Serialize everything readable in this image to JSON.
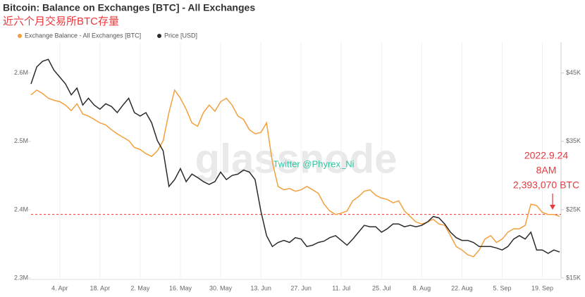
{
  "chart_data": {
    "type": "line",
    "title": "Bitcoin: Balance on Exchanges [BTC] - All Exchanges",
    "subtitle": "近六个月交易所BTC存量",
    "watermark": "glassnode",
    "credit": "Twitter @Phyrex_Ni",
    "annotation": {
      "lines": [
        "2022.9.24",
        "8AM",
        "2,393,070 BTC"
      ],
      "value": 2393070,
      "color": "#e8383d"
    },
    "categories": [
      null,
      null,
      null,
      null,
      null,
      "4. Apr",
      null,
      null,
      null,
      null,
      null,
      null,
      "18. Apr",
      null,
      null,
      null,
      null,
      null,
      null,
      "2. May",
      null,
      null,
      null,
      null,
      null,
      null,
      "16. May",
      null,
      null,
      null,
      null,
      null,
      null,
      "30. May",
      null,
      null,
      null,
      null,
      null,
      null,
      "13. Jun",
      null,
      null,
      null,
      null,
      null,
      null,
      "27. Jun",
      null,
      null,
      null,
      null,
      null,
      null,
      "11. Jul",
      null,
      null,
      null,
      null,
      null,
      null,
      "25. Jul",
      null,
      null,
      null,
      null,
      null,
      null,
      "8. Aug",
      null,
      null,
      null,
      null,
      null,
      null,
      "22. Aug",
      null,
      null,
      null,
      null,
      null,
      null,
      "5. Sep",
      null,
      null,
      null,
      null,
      null,
      null,
      "19. Sep",
      null,
      null,
      null
    ],
    "series": [
      {
        "name": "Exchange Balance - All Exchanges [BTC]",
        "color": "#f2a03d",
        "values": [
          2568000,
          2575000,
          2570000,
          2563000,
          2560000,
          2558000,
          2553000,
          2545000,
          2555000,
          2540000,
          2537000,
          2532000,
          2527000,
          2524000,
          2517000,
          2511000,
          2506000,
          2501000,
          2491000,
          2488000,
          2482000,
          2478000,
          2486000,
          2501000,
          2542000,
          2575000,
          2563000,
          2547000,
          2527000,
          2522000,
          2542000,
          2553000,
          2544000,
          2558000,
          2563000,
          2553000,
          2537000,
          2532000,
          2517000,
          2511000,
          2513000,
          2527000,
          2470000,
          2434000,
          2429000,
          2431000,
          2427000,
          2429000,
          2434000,
          2429000,
          2424000,
          2408000,
          2398000,
          2393000,
          2395000,
          2398000,
          2413000,
          2419000,
          2427000,
          2429000,
          2421000,
          2417000,
          2415000,
          2410000,
          2413000,
          2398000,
          2390000,
          2382000,
          2379000,
          2382000,
          2386000,
          2379000,
          2377000,
          2362000,
          2346000,
          2341000,
          2334000,
          2331000,
          2341000,
          2357000,
          2362000,
          2352000,
          2357000,
          2367000,
          2372000,
          2372000,
          2377000,
          2408000,
          2406000,
          2396000,
          2393000,
          2393000,
          2390000
        ]
      },
      {
        "name": "Price [USD]",
        "color": "#2b2b2b",
        "axis": "y2",
        "values": [
          43400,
          45900,
          46700,
          47000,
          45400,
          44400,
          43400,
          41800,
          42800,
          40300,
          41300,
          40300,
          39700,
          40500,
          40100,
          39200,
          40300,
          41300,
          39200,
          38700,
          39200,
          37700,
          35100,
          33600,
          28400,
          29400,
          31000,
          29100,
          30200,
          29700,
          29100,
          28700,
          29100,
          30500,
          29400,
          30000,
          30200,
          30800,
          30500,
          29400,
          24800,
          21200,
          19600,
          20200,
          20500,
          20200,
          20900,
          20700,
          19600,
          19800,
          20200,
          20400,
          20900,
          21200,
          20500,
          19800,
          20700,
          21700,
          22700,
          22500,
          22500,
          21700,
          22200,
          22900,
          22900,
          22500,
          22700,
          22500,
          22700,
          23200,
          24000,
          23800,
          22900,
          21700,
          20900,
          20500,
          20500,
          20200,
          19600,
          19600,
          19600,
          19400,
          19100,
          19600,
          20700,
          21200,
          20700,
          21700,
          19100,
          19100,
          18600,
          19100,
          18800
        ]
      }
    ],
    "ylim": [
      2300000,
      2645000
    ],
    "yticks": [
      {
        "value": 2300000,
        "label": "2.3M"
      },
      {
        "value": 2400000,
        "label": "2.4M"
      },
      {
        "value": 2500000,
        "label": "2.5M"
      },
      {
        "value": 2600000,
        "label": "2.6M"
      }
    ],
    "y2lim": [
      15000,
      49500
    ],
    "y2ticks": [
      {
        "value": 15000,
        "label": "$15K"
      },
      {
        "value": 25000,
        "label": "$25K"
      },
      {
        "value": 35000,
        "label": "$35K"
      },
      {
        "value": 45000,
        "label": "$45K"
      }
    ],
    "grid": true
  }
}
